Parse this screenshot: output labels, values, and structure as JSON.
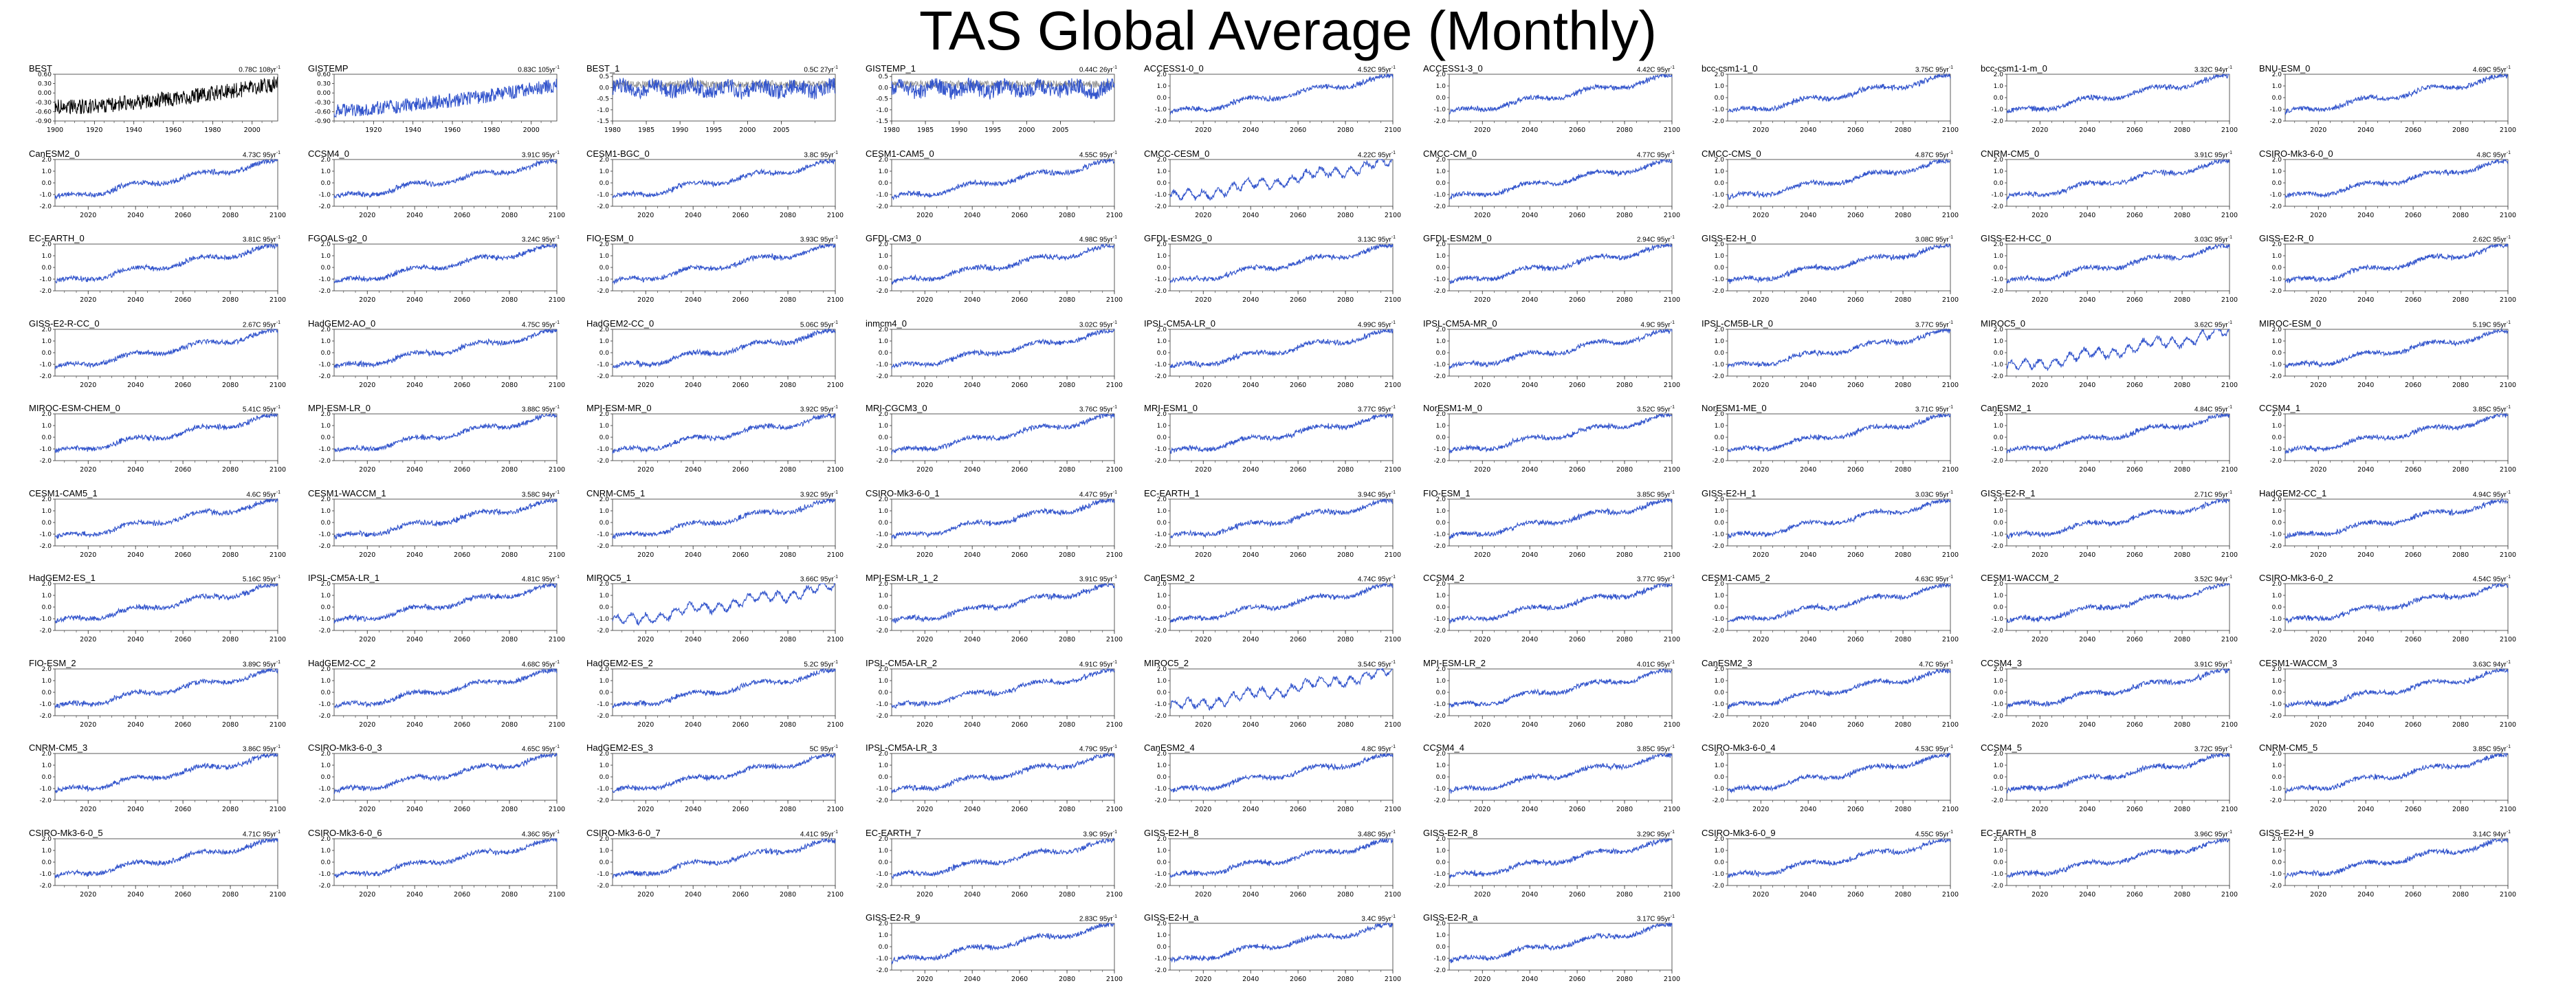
{
  "title": "TAS Global Average (Monthly)",
  "colors": {
    "model": "#3355cc",
    "observed": "#000000",
    "ghost": "#888888",
    "axis": "#333333"
  },
  "chart_data": {
    "type": "line",
    "title": "TAS Global Average (Monthly)",
    "grid": false,
    "panels": [
      {
        "name": "BEST",
        "stat": "0.78C 108yr",
        "sup": "-1",
        "kind": "obs",
        "x_range": [
          1900,
          2013
        ],
        "xticks": [
          1900,
          1920,
          1940,
          1960,
          1980,
          2000
        ],
        "yticks": [
          "0.60",
          "0.30",
          "0.00",
          "-0.30",
          "-0.60",
          "-0.90"
        ],
        "ylim": [
          -0.9,
          0.6
        ]
      },
      {
        "name": "GISTEMP",
        "stat": "0.83C 105yr",
        "sup": "-1",
        "kind": "obs2",
        "x_range": [
          1900,
          2013
        ],
        "xticks": [
          1920,
          1940,
          1960,
          1980,
          2000
        ],
        "yticks": [
          "0.60",
          "0.30",
          "0.00",
          "-0.30",
          "-0.60",
          "-0.90"
        ],
        "ylim": [
          -0.9,
          0.6
        ]
      },
      {
        "name": "BEST_1",
        "stat": "0.5C 27yr",
        "sup": "-1",
        "kind": "resid",
        "x_range": [
          1980,
          2013
        ],
        "xticks": [
          1980,
          1985,
          1990,
          1995,
          2000,
          2005
        ],
        "yticks": [
          "0.5",
          "0.0",
          "-0.5",
          "-1.0",
          "-1.5"
        ],
        "ylim": [
          -1.5,
          0.6
        ]
      },
      {
        "name": "GISTEMP_1",
        "stat": "0.44C 26yr",
        "sup": "-1",
        "kind": "resid",
        "x_range": [
          1980,
          2013
        ],
        "xticks": [
          1980,
          1985,
          1990,
          1995,
          2000,
          2005
        ],
        "yticks": [
          "0.5",
          "0.0",
          "-0.5",
          "-1.0",
          "-1.5"
        ],
        "ylim": [
          -1.5,
          0.6
        ]
      },
      {
        "name": "ACCESS1-0_0",
        "stat": "4.52C 95yr",
        "sup": "-1",
        "kind": "model"
      },
      {
        "name": "ACCESS1-3_0",
        "stat": "4.42C 95yr",
        "sup": "-1",
        "kind": "model"
      },
      {
        "name": "bcc-csm1-1_0",
        "stat": "3.75C 95yr",
        "sup": "-1",
        "kind": "model"
      },
      {
        "name": "bcc-csm1-1-m_0",
        "stat": "3.32C 94yr",
        "sup": "-1",
        "kind": "model"
      },
      {
        "name": "BNU-ESM_0",
        "stat": "4.69C 95yr",
        "sup": "-1",
        "kind": "model"
      },
      {
        "name": "CanESM2_0",
        "stat": "4.73C 95yr",
        "sup": "-1",
        "kind": "model"
      },
      {
        "name": "CCSM4_0",
        "stat": "3.91C 95yr",
        "sup": "-1",
        "kind": "model"
      },
      {
        "name": "CESM1-BGC_0",
        "stat": "3.8C 95yr",
        "sup": "-1",
        "kind": "model"
      },
      {
        "name": "CESM1-CAM5_0",
        "stat": "4.55C 95yr",
        "sup": "-1",
        "kind": "model"
      },
      {
        "name": "CMCC-CESM_0",
        "stat": "4.22C 95yr",
        "sup": "-1",
        "kind": "model_osc"
      },
      {
        "name": "CMCC-CM_0",
        "stat": "4.77C 95yr",
        "sup": "-1",
        "kind": "model"
      },
      {
        "name": "CMCC-CMS_0",
        "stat": "4.87C 95yr",
        "sup": "-1",
        "kind": "model"
      },
      {
        "name": "CNRM-CM5_0",
        "stat": "3.91C 95yr",
        "sup": "-1",
        "kind": "model"
      },
      {
        "name": "CSIRO-Mk3-6-0_0",
        "stat": "4.8C 95yr",
        "sup": "-1",
        "kind": "model"
      },
      {
        "name": "EC-EARTH_0",
        "stat": "3.81C 95yr",
        "sup": "-1",
        "kind": "model"
      },
      {
        "name": "FGOALS-g2_0",
        "stat": "3.24C 95yr",
        "sup": "-1",
        "kind": "model"
      },
      {
        "name": "FIO-ESM_0",
        "stat": "3.93C 95yr",
        "sup": "-1",
        "kind": "model"
      },
      {
        "name": "GFDL-CM3_0",
        "stat": "4.98C 95yr",
        "sup": "-1",
        "kind": "model"
      },
      {
        "name": "GFDL-ESM2G_0",
        "stat": "3.13C 95yr",
        "sup": "-1",
        "kind": "model"
      },
      {
        "name": "GFDL-ESM2M_0",
        "stat": "2.94C 95yr",
        "sup": "-1",
        "kind": "model"
      },
      {
        "name": "GISS-E2-H_0",
        "stat": "3.08C 95yr",
        "sup": "-1",
        "kind": "model"
      },
      {
        "name": "GISS-E2-H-CC_0",
        "stat": "3.03C 95yr",
        "sup": "-1",
        "kind": "model"
      },
      {
        "name": "GISS-E2-R_0",
        "stat": "2.62C 95yr",
        "sup": "-1",
        "kind": "model"
      },
      {
        "name": "GISS-E2-R-CC_0",
        "stat": "2.67C 95yr",
        "sup": "-1",
        "kind": "model"
      },
      {
        "name": "HadGEM2-AO_0",
        "stat": "4.75C 95yr",
        "sup": "-1",
        "kind": "model"
      },
      {
        "name": "HadGEM2-CC_0",
        "stat": "5.06C 95yr",
        "sup": "-1",
        "kind": "model"
      },
      {
        "name": "inmcm4_0",
        "stat": "3.02C 95yr",
        "sup": "-1",
        "kind": "model"
      },
      {
        "name": "IPSL-CM5A-LR_0",
        "stat": "4.99C 95yr",
        "sup": "-1",
        "kind": "model"
      },
      {
        "name": "IPSL-CM5A-MR_0",
        "stat": "4.9C 95yr",
        "sup": "-1",
        "kind": "model"
      },
      {
        "name": "IPSL-CM5B-LR_0",
        "stat": "3.77C 95yr",
        "sup": "-1",
        "kind": "model"
      },
      {
        "name": "MIROC5_0",
        "stat": "3.62C 95yr",
        "sup": "-1",
        "kind": "model_osc"
      },
      {
        "name": "MIROC-ESM_0",
        "stat": "5.19C 95yr",
        "sup": "-1",
        "kind": "model"
      },
      {
        "name": "MIROC-ESM-CHEM_0",
        "stat": "5.41C 95yr",
        "sup": "-1",
        "kind": "model"
      },
      {
        "name": "MPI-ESM-LR_0",
        "stat": "3.88C 95yr",
        "sup": "-1",
        "kind": "model"
      },
      {
        "name": "MPI-ESM-MR_0",
        "stat": "3.92C 95yr",
        "sup": "-1",
        "kind": "model"
      },
      {
        "name": "MRI-CGCM3_0",
        "stat": "3.76C 95yr",
        "sup": "-1",
        "kind": "model"
      },
      {
        "name": "MRI-ESM1_0",
        "stat": "3.77C 95yr",
        "sup": "-1",
        "kind": "model"
      },
      {
        "name": "NorESM1-M_0",
        "stat": "3.52C 95yr",
        "sup": "-1",
        "kind": "model"
      },
      {
        "name": "NorESM1-ME_0",
        "stat": "3.71C 95yr",
        "sup": "-1",
        "kind": "model"
      },
      {
        "name": "CanESM2_1",
        "stat": "4.84C 95yr",
        "sup": "-1",
        "kind": "model"
      },
      {
        "name": "CCSM4_1",
        "stat": "3.85C 95yr",
        "sup": "-1",
        "kind": "model"
      },
      {
        "name": "CESM1-CAM5_1",
        "stat": "4.6C 95yr",
        "sup": "-1",
        "kind": "model"
      },
      {
        "name": "CESM1-WACCM_1",
        "stat": "3.58C 94yr",
        "sup": "-1",
        "kind": "model"
      },
      {
        "name": "CNRM-CM5_1",
        "stat": "3.92C 95yr",
        "sup": "-1",
        "kind": "model"
      },
      {
        "name": "CSIRO-Mk3-6-0_1",
        "stat": "4.47C 95yr",
        "sup": "-1",
        "kind": "model"
      },
      {
        "name": "EC-EARTH_1",
        "stat": "3.94C 95yr",
        "sup": "-1",
        "kind": "model"
      },
      {
        "name": "FIO-ESM_1",
        "stat": "3.85C 95yr",
        "sup": "-1",
        "kind": "model"
      },
      {
        "name": "GISS-E2-H_1",
        "stat": "3.03C 95yr",
        "sup": "-1",
        "kind": "model"
      },
      {
        "name": "GISS-E2-R_1",
        "stat": "2.71C 95yr",
        "sup": "-1",
        "kind": "model"
      },
      {
        "name": "HadGEM2-CC_1",
        "stat": "4.94C 95yr",
        "sup": "-1",
        "kind": "model"
      },
      {
        "name": "HadGEM2-ES_1",
        "stat": "5.16C 95yr",
        "sup": "-1",
        "kind": "model"
      },
      {
        "name": "IPSL-CM5A-LR_1",
        "stat": "4.81C 95yr",
        "sup": "-1",
        "kind": "model"
      },
      {
        "name": "MIROC5_1",
        "stat": "3.66C 95yr",
        "sup": "-1",
        "kind": "model_osc"
      },
      {
        "name": "MPI-ESM-LR_1_2",
        "stat": "3.91C 95yr",
        "sup": "-1",
        "kind": "model"
      },
      {
        "name": "CanESM2_2",
        "stat": "4.74C 95yr",
        "sup": "-1",
        "kind": "model"
      },
      {
        "name": "CCSM4_2",
        "stat": "3.77C 95yr",
        "sup": "-1",
        "kind": "model"
      },
      {
        "name": "CESM1-CAM5_2",
        "stat": "4.63C 95yr",
        "sup": "-1",
        "kind": "model"
      },
      {
        "name": "CESM1-WACCM_2",
        "stat": "3.52C 94yr",
        "sup": "-1",
        "kind": "model"
      },
      {
        "name": "CSIRO-Mk3-6-0_2",
        "stat": "4.54C 95yr",
        "sup": "-1",
        "kind": "model"
      },
      {
        "name": "FIO-ESM_2",
        "stat": "3.89C 95yr",
        "sup": "-1",
        "kind": "model"
      },
      {
        "name": "HadGEM2-CC_2",
        "stat": "4.68C 95yr",
        "sup": "-1",
        "kind": "model"
      },
      {
        "name": "HadGEM2-ES_2",
        "stat": "5.2C 95yr",
        "sup": "-1",
        "kind": "model"
      },
      {
        "name": "IPSL-CM5A-LR_2",
        "stat": "4.91C 95yr",
        "sup": "-1",
        "kind": "model"
      },
      {
        "name": "MIROC5_2",
        "stat": "3.54C 95yr",
        "sup": "-1",
        "kind": "model_osc"
      },
      {
        "name": "MPI-ESM-LR_2",
        "stat": "4.01C 95yr",
        "sup": "-1",
        "kind": "model"
      },
      {
        "name": "CanESM2_3",
        "stat": "4.7C 95yr",
        "sup": "-1",
        "kind": "model"
      },
      {
        "name": "CCSM4_3",
        "stat": "3.91C 95yr",
        "sup": "-1",
        "kind": "model"
      },
      {
        "name": "CESM1-WACCM_3",
        "stat": "3.63C 94yr",
        "sup": "-1",
        "kind": "model"
      },
      {
        "name": "CNRM-CM5_3",
        "stat": "3.86C 95yr",
        "sup": "-1",
        "kind": "model"
      },
      {
        "name": "CSIRO-Mk3-6-0_3",
        "stat": "4.65C 95yr",
        "sup": "-1",
        "kind": "model"
      },
      {
        "name": "HadGEM2-ES_3",
        "stat": "5C 95yr",
        "sup": "-1",
        "kind": "model"
      },
      {
        "name": "IPSL-CM5A-LR_3",
        "stat": "4.79C 95yr",
        "sup": "-1",
        "kind": "model"
      },
      {
        "name": "CanESM2_4",
        "stat": "4.8C 95yr",
        "sup": "-1",
        "kind": "model"
      },
      {
        "name": "CCSM4_4",
        "stat": "3.85C 95yr",
        "sup": "-1",
        "kind": "model"
      },
      {
        "name": "CSIRO-Mk3-6-0_4",
        "stat": "4.53C 95yr",
        "sup": "-1",
        "kind": "model"
      },
      {
        "name": "CCSM4_5",
        "stat": "3.72C 95yr",
        "sup": "-1",
        "kind": "model"
      },
      {
        "name": "CNRM-CM5_5",
        "stat": "3.85C 95yr",
        "sup": "-1",
        "kind": "model"
      },
      {
        "name": "CSIRO-Mk3-6-0_5",
        "stat": "4.71C 95yr",
        "sup": "-1",
        "kind": "model"
      },
      {
        "name": "CSIRO-Mk3-6-0_6",
        "stat": "4.36C 95yr",
        "sup": "-1",
        "kind": "model"
      },
      {
        "name": "CSIRO-Mk3-6-0_7",
        "stat": "4.41C 95yr",
        "sup": "-1",
        "kind": "model"
      },
      {
        "name": "EC-EARTH_7",
        "stat": "3.9C 95yr",
        "sup": "-1",
        "kind": "model"
      },
      {
        "name": "GISS-E2-H_8",
        "stat": "3.48C 95yr",
        "sup": "-1",
        "kind": "model"
      },
      {
        "name": "GISS-E2-R_8",
        "stat": "3.29C 95yr",
        "sup": "-1",
        "kind": "model"
      },
      {
        "name": "CSIRO-Mk3-6-0_9",
        "stat": "4.55C 95yr",
        "sup": "-1",
        "kind": "model"
      },
      {
        "name": "EC-EARTH_8",
        "stat": "3.96C 95yr",
        "sup": "-1",
        "kind": "model"
      },
      {
        "name": "GISS-E2-H_9",
        "stat": "3.14C 94yr",
        "sup": "-1",
        "kind": "model"
      },
      {
        "name": "GISS-E2-R_9",
        "stat": "2.83C 95yr",
        "sup": "-1",
        "kind": "model",
        "col": 3
      },
      {
        "name": "GISS-E2-H_a",
        "stat": "3.4C 95yr",
        "sup": "-1",
        "kind": "model"
      },
      {
        "name": "GISS-E2-R_a",
        "stat": "3.17C 95yr",
        "sup": "-1",
        "kind": "model"
      }
    ],
    "model_x_range": [
      2006,
      2100
    ],
    "model_xticks": [
      2020,
      2040,
      2060,
      2080,
      2100
    ],
    "model_yticks": [
      "2.0",
      "1.0",
      "0.0",
      "-1.0",
      "-2.0"
    ],
    "model_ylim": [
      -2.0,
      2.0
    ]
  }
}
